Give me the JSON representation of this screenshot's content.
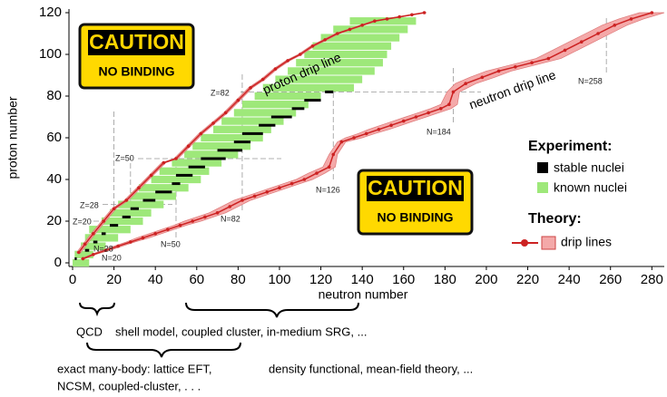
{
  "chart_data": {
    "type": "nuclide",
    "xlabel": "neutron number",
    "ylabel": "proton number",
    "xlim": [
      0,
      286
    ],
    "ylim": [
      0,
      120
    ],
    "xticks": [
      0,
      20,
      40,
      60,
      80,
      100,
      120,
      140,
      160,
      180,
      200,
      220,
      240,
      260,
      280
    ],
    "yticks": [
      0,
      20,
      40,
      60,
      80,
      100,
      120
    ],
    "known_nuclei": {
      "name": "known nuclei",
      "color": "#9ee87a",
      "z": [
        0,
        4,
        8,
        12,
        16,
        20,
        24,
        28,
        32,
        36,
        40,
        44,
        48,
        52,
        56,
        60,
        64,
        68,
        72,
        76,
        80,
        84,
        88,
        92,
        96,
        100,
        104,
        108,
        112,
        116
      ],
      "n_min": [
        0,
        1,
        4,
        6,
        8,
        14,
        18,
        22,
        28,
        32,
        38,
        42,
        48,
        54,
        58,
        62,
        68,
        72,
        78,
        82,
        88,
        92,
        98,
        104,
        108,
        112,
        116,
        120,
        126,
        134
      ],
      "n_max": [
        8,
        10,
        16,
        22,
        28,
        34,
        38,
        44,
        50,
        56,
        62,
        66,
        72,
        80,
        86,
        92,
        96,
        102,
        108,
        114,
        120,
        136,
        140,
        146,
        150,
        152,
        154,
        158,
        162,
        166
      ]
    },
    "stable_nuclei": {
      "name": "stable nuclei",
      "color": "#000000",
      "z": [
        2,
        6,
        10,
        14,
        18,
        22,
        26,
        30,
        34,
        38,
        42,
        46,
        50,
        54,
        58,
        62,
        66,
        70,
        74,
        78,
        82
      ],
      "n_min": [
        1,
        6,
        10,
        14,
        18,
        24,
        28,
        34,
        40,
        48,
        50,
        56,
        62,
        70,
        78,
        82,
        90,
        96,
        106,
        112,
        122
      ],
      "n_max": [
        2,
        8,
        12,
        16,
        22,
        28,
        32,
        40,
        48,
        52,
        58,
        64,
        74,
        82,
        86,
        92,
        98,
        106,
        112,
        120,
        126
      ]
    },
    "drip_lines": {
      "name": "drip lines",
      "color": "#cc2222",
      "band_color": "#f4a9a9",
      "series": [
        {
          "name": "proton drip line",
          "x": [
            3,
            6,
            10,
            15,
            20,
            26,
            32,
            38,
            44,
            50,
            56,
            62,
            68,
            74,
            80,
            86,
            92,
            98,
            104,
            110,
            116,
            122,
            128,
            134,
            140,
            146,
            152,
            158,
            164,
            170
          ],
          "y": [
            5,
            9,
            14,
            20,
            26,
            30,
            36,
            42,
            48,
            50,
            56,
            62,
            67,
            72,
            78,
            84,
            88,
            93,
            97,
            100,
            104,
            107,
            110,
            112,
            114,
            116,
            117,
            118,
            119,
            120
          ],
          "x_err": [
            1,
            1,
            1,
            1,
            1,
            1,
            1,
            1,
            1,
            1,
            1,
            1,
            1,
            1,
            1,
            1,
            1,
            1,
            1,
            1,
            1,
            1,
            1,
            1,
            1,
            1,
            1,
            1,
            1,
            1
          ]
        },
        {
          "name": "neutron drip line",
          "x": [
            5,
            10,
            16,
            22,
            28,
            34,
            40,
            46,
            52,
            58,
            64,
            70,
            76,
            82,
            88,
            94,
            100,
            106,
            112,
            118,
            124,
            126,
            130,
            136,
            142,
            148,
            154,
            160,
            166,
            172,
            178,
            182,
            184,
            190,
            198,
            206,
            214,
            222,
            230,
            238,
            246,
            254,
            262,
            270,
            280
          ],
          "y": [
            2,
            4,
            6,
            8,
            10,
            12,
            14,
            16,
            18,
            20,
            22,
            24,
            27,
            30,
            32,
            34,
            36,
            38,
            40,
            43,
            46,
            52,
            58,
            60,
            62,
            64,
            66,
            68,
            70,
            72,
            74,
            76,
            82,
            86,
            89,
            92,
            94,
            96,
            98,
            102,
            106,
            110,
            114,
            117,
            120
          ],
          "x_err": [
            1,
            1,
            2,
            2,
            2,
            3,
            3,
            3,
            3,
            4,
            4,
            4,
            4,
            4,
            4,
            4,
            4,
            4,
            4,
            4,
            3,
            2,
            2,
            4,
            4,
            5,
            5,
            5,
            5,
            5,
            5,
            4,
            3,
            5,
            6,
            6,
            6,
            6,
            6,
            6,
            6,
            6,
            6,
            6,
            6
          ]
        }
      ]
    },
    "magic": [
      {
        "label": "Z=82",
        "axis": "y",
        "value": 82
      },
      {
        "label": "Z=50",
        "axis": "y",
        "value": 50
      },
      {
        "label": "Z=28",
        "axis": "y",
        "value": 28
      },
      {
        "label": "Z=20",
        "axis": "y",
        "value": 20
      },
      {
        "label": "N=20",
        "axis": "x",
        "value": 20
      },
      {
        "label": "N=28",
        "axis": "x",
        "value": 28
      },
      {
        "label": "N=50",
        "axis": "x",
        "value": 50
      },
      {
        "label": "N=82",
        "axis": "x",
        "value": 82
      },
      {
        "label": "N=126",
        "axis": "x",
        "value": 126
      },
      {
        "label": "N=184",
        "axis": "x",
        "value": 184
      },
      {
        "label": "N=258",
        "axis": "x",
        "value": 258
      }
    ],
    "legend": {
      "experiment": "Experiment:",
      "theory": "Theory:"
    },
    "signs": [
      {
        "title": "CAUTION",
        "text": "NO BINDING"
      },
      {
        "title": "CAUTION",
        "text": "NO BINDING"
      }
    ],
    "methods": [
      "QCD",
      "shell model, coupled cluster, in-medium SRG, ...",
      "exact many-body: lattice EFT,",
      "density functional, mean-field theory, ...",
      "NCSM, coupled-cluster, . . ."
    ]
  }
}
